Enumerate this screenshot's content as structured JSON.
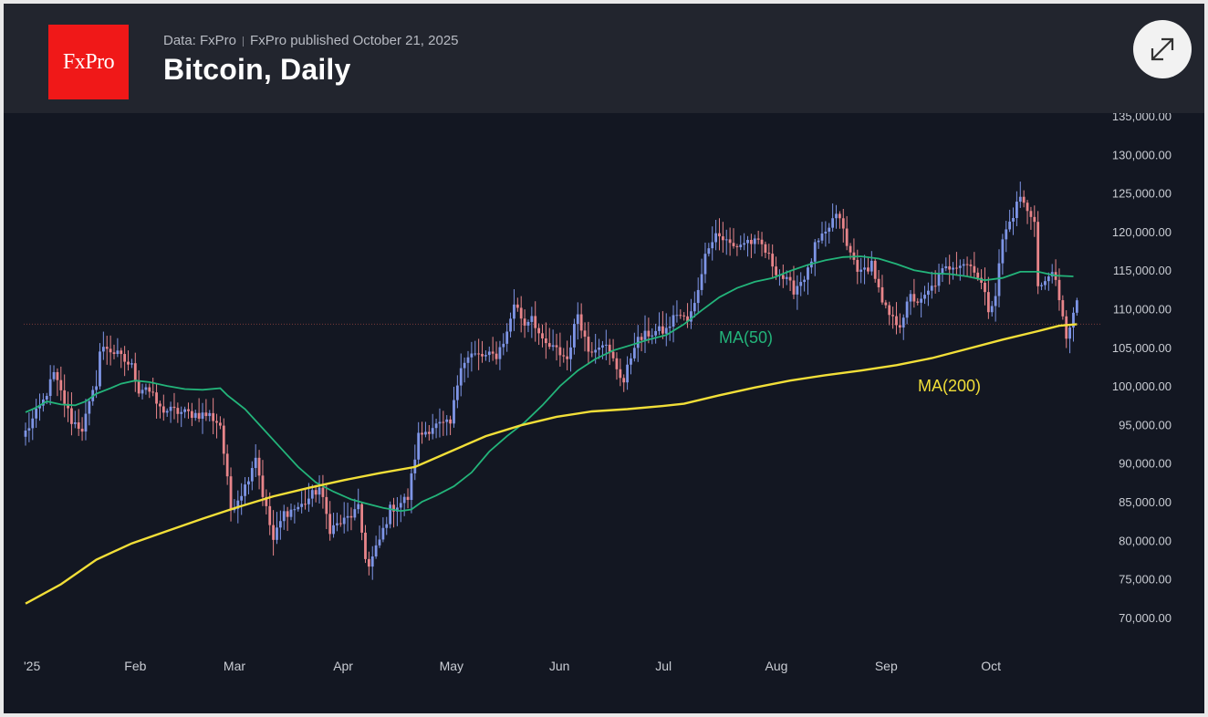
{
  "header": {
    "logo_text": "FxPro",
    "data_source": "Data: FxPro",
    "published": "FxPro published October 21, 2025",
    "title": "Bitcoin, Daily"
  },
  "colors": {
    "background": "#131722",
    "header_bg": "#22252e",
    "logo_bg": "#f01818",
    "up_candle": "#7e95e6",
    "down_candle": "#e8858a",
    "ma50": "#23b47a",
    "ma200": "#f2df38",
    "current_line": "#7a3a3a"
  },
  "chart_data": {
    "type": "candlestick",
    "title": "Bitcoin, Daily",
    "x_range": [
      "2025-01-01",
      "2025-10-21"
    ],
    "ylim": [
      67000,
      137000
    ],
    "y_ticks": [
      "135,000.00",
      "130,000.00",
      "125,000.00",
      "120,000.00",
      "115,000.00",
      "110,000.00",
      "105,000.00",
      "100,000.00",
      "95,000.00",
      "90,000.00",
      "85,000.00",
      "80,000.00",
      "75,000.00",
      "70,000.00"
    ],
    "y_tick_values": [
      135000,
      130000,
      125000,
      120000,
      115000,
      110000,
      105000,
      100000,
      95000,
      90000,
      85000,
      80000,
      75000,
      70000
    ],
    "x_ticks": [
      {
        "label": "'25",
        "day": 0
      },
      {
        "label": "Feb",
        "day": 31
      },
      {
        "label": "Mar",
        "day": 59
      },
      {
        "label": "Apr",
        "day": 90
      },
      {
        "label": "May",
        "day": 120
      },
      {
        "label": "Jun",
        "day": 151
      },
      {
        "label": "Jul",
        "day": 181
      },
      {
        "label": "Aug",
        "day": 212
      },
      {
        "label": "Sep",
        "day": 243
      },
      {
        "label": "Oct",
        "day": 273
      }
    ],
    "close_anchors": [
      [
        0,
        94000
      ],
      [
        5,
        98000
      ],
      [
        8,
        101500
      ],
      [
        13,
        95500
      ],
      [
        16,
        94500
      ],
      [
        20,
        100500
      ],
      [
        21,
        104500
      ],
      [
        23,
        105000
      ],
      [
        26,
        104000
      ],
      [
        30,
        102500
      ],
      [
        32,
        99500
      ],
      [
        34,
        100000
      ],
      [
        38,
        97000
      ],
      [
        45,
        96500
      ],
      [
        52,
        96200
      ],
      [
        55,
        95000
      ],
      [
        58,
        84000
      ],
      [
        62,
        87000
      ],
      [
        65,
        91000
      ],
      [
        67,
        86000
      ],
      [
        70,
        80000
      ],
      [
        73,
        83500
      ],
      [
        78,
        84500
      ],
      [
        83,
        86800
      ],
      [
        86,
        81500
      ],
      [
        90,
        82500
      ],
      [
        94,
        84000
      ],
      [
        96,
        78000
      ],
      [
        97,
        76500
      ],
      [
        100,
        80000
      ],
      [
        103,
        84000
      ],
      [
        108,
        85500
      ],
      [
        111,
        93500
      ],
      [
        115,
        94800
      ],
      [
        120,
        95000
      ],
      [
        123,
        103000
      ],
      [
        126,
        104000
      ],
      [
        130,
        103800
      ],
      [
        133,
        104000
      ],
      [
        136,
        106800
      ],
      [
        138,
        110800
      ],
      [
        141,
        108000
      ],
      [
        143,
        109300
      ],
      [
        146,
        105500
      ],
      [
        150,
        104600
      ],
      [
        153,
        103500
      ],
      [
        156,
        109500
      ],
      [
        159,
        104600
      ],
      [
        163,
        105800
      ],
      [
        166,
        103300
      ],
      [
        169,
        100500
      ],
      [
        172,
        105500
      ],
      [
        176,
        106800
      ],
      [
        178,
        107000
      ],
      [
        181,
        107200
      ],
      [
        184,
        109500
      ],
      [
        187,
        108300
      ],
      [
        189,
        110500
      ],
      [
        191,
        115000
      ],
      [
        193,
        118500
      ],
      [
        195,
        119800
      ],
      [
        200,
        118000
      ],
      [
        204,
        118800
      ],
      [
        208,
        118200
      ],
      [
        212,
        115000
      ],
      [
        215,
        113500
      ],
      [
        217,
        112500
      ],
      [
        221,
        114800
      ],
      [
        223,
        118000
      ],
      [
        226,
        119600
      ],
      [
        228,
        121500
      ],
      [
        230,
        122000
      ],
      [
        232,
        118000
      ],
      [
        236,
        114500
      ],
      [
        239,
        116000
      ],
      [
        242,
        110500
      ],
      [
        245,
        108500
      ],
      [
        247,
        108100
      ],
      [
        250,
        111500
      ],
      [
        253,
        110800
      ],
      [
        256,
        112700
      ],
      [
        259,
        114800
      ],
      [
        262,
        115800
      ],
      [
        265,
        116000
      ],
      [
        268,
        115300
      ],
      [
        270,
        113200
      ],
      [
        272,
        110000
      ],
      [
        274,
        112000
      ],
      [
        276,
        119000
      ],
      [
        279,
        122300
      ],
      [
        281,
        124600
      ],
      [
        283,
        122500
      ],
      [
        285,
        121800
      ],
      [
        286,
        112800
      ],
      [
        288,
        113200
      ],
      [
        290,
        115400
      ],
      [
        292,
        110700
      ],
      [
        294,
        106500
      ],
      [
        295,
        108000
      ],
      [
        297,
        110500
      ]
    ],
    "series": [
      {
        "name": "MA(50)",
        "label": "MA(50)",
        "points": [
          [
            0,
            96600
          ],
          [
            3,
            97200
          ],
          [
            6,
            98000
          ],
          [
            10,
            97600
          ],
          [
            14,
            97500
          ],
          [
            17,
            98000
          ],
          [
            20,
            99000
          ],
          [
            24,
            99700
          ],
          [
            27,
            100300
          ],
          [
            31,
            100700
          ],
          [
            35,
            100500
          ],
          [
            40,
            100000
          ],
          [
            45,
            99600
          ],
          [
            50,
            99500
          ],
          [
            55,
            99700
          ],
          [
            57,
            98800
          ],
          [
            62,
            97000
          ],
          [
            67,
            94500
          ],
          [
            72,
            92000
          ],
          [
            77,
            89500
          ],
          [
            82,
            87500
          ],
          [
            87,
            86300
          ],
          [
            92,
            85300
          ],
          [
            96,
            84800
          ],
          [
            101,
            84200
          ],
          [
            106,
            83800
          ],
          [
            109,
            84000
          ],
          [
            112,
            85000
          ],
          [
            116,
            85800
          ],
          [
            121,
            87000
          ],
          [
            126,
            88800
          ],
          [
            131,
            91500
          ],
          [
            136,
            93500
          ],
          [
            141,
            95300
          ],
          [
            146,
            97500
          ],
          [
            151,
            100000
          ],
          [
            156,
            102000
          ],
          [
            161,
            103500
          ],
          [
            166,
            104600
          ],
          [
            171,
            105300
          ],
          [
            176,
            106000
          ],
          [
            181,
            106600
          ],
          [
            186,
            108000
          ],
          [
            191,
            109800
          ],
          [
            196,
            111500
          ],
          [
            201,
            112700
          ],
          [
            206,
            113500
          ],
          [
            211,
            114000
          ],
          [
            216,
            114900
          ],
          [
            221,
            115700
          ],
          [
            226,
            116300
          ],
          [
            231,
            116700
          ],
          [
            236,
            116800
          ],
          [
            241,
            116500
          ],
          [
            246,
            115800
          ],
          [
            251,
            115000
          ],
          [
            256,
            114600
          ],
          [
            261,
            114500
          ],
          [
            266,
            114200
          ],
          [
            271,
            113700
          ],
          [
            276,
            114000
          ],
          [
            281,
            114800
          ],
          [
            286,
            114800
          ],
          [
            291,
            114300
          ],
          [
            296,
            114200
          ]
        ],
        "color": "#23b47a"
      },
      {
        "name": "MA(200)",
        "label": "MA(200)",
        "points": [
          [
            0,
            71800
          ],
          [
            10,
            74300
          ],
          [
            20,
            77500
          ],
          [
            30,
            79600
          ],
          [
            40,
            81200
          ],
          [
            50,
            82800
          ],
          [
            60,
            84300
          ],
          [
            70,
            85700
          ],
          [
            80,
            86800
          ],
          [
            90,
            87800
          ],
          [
            100,
            88700
          ],
          [
            110,
            89500
          ],
          [
            120,
            91500
          ],
          [
            130,
            93500
          ],
          [
            140,
            94900
          ],
          [
            150,
            96000
          ],
          [
            160,
            96700
          ],
          [
            170,
            97000
          ],
          [
            180,
            97400
          ],
          [
            186,
            97700
          ],
          [
            196,
            98800
          ],
          [
            206,
            99800
          ],
          [
            216,
            100700
          ],
          [
            226,
            101400
          ],
          [
            236,
            102000
          ],
          [
            246,
            102700
          ],
          [
            256,
            103600
          ],
          [
            266,
            104800
          ],
          [
            276,
            106000
          ],
          [
            286,
            107100
          ],
          [
            292,
            107800
          ],
          [
            297,
            108000
          ]
        ],
        "color": "#f2df38"
      }
    ],
    "current_price_line": 108000,
    "grid": false
  }
}
